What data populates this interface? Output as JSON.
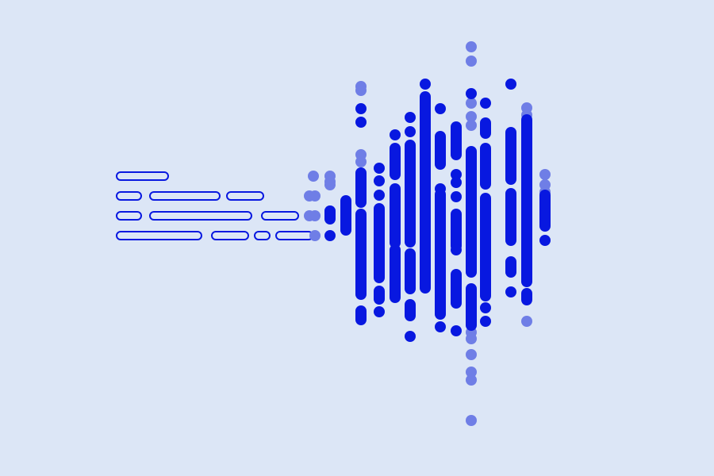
{
  "illustration": {
    "subject": "text-to-waveform",
    "colors": {
      "background": "#dce6f6",
      "ink": "#0818e0",
      "ink_faded": "#6f7ee6"
    }
  }
}
